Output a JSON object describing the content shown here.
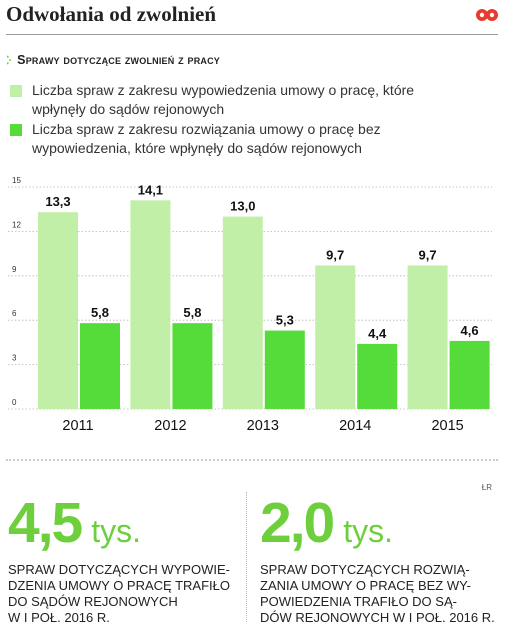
{
  "header": {
    "title": "Odwołania od zwolnień",
    "subtitle": "Sprawy dotyczące zwolnień z pracy",
    "logo_color": "#e83a2e"
  },
  "legend": [
    {
      "label": "Liczba spraw z zakresu wypowiedzenia umowy o pracę, które wpłynęły do sądów rejonowych",
      "color": "#c2efa8"
    },
    {
      "label": "Liczba spraw z zakresu rozwiązania umowy o pracę bez wypowiedzenia, które wpłynęły do sądów rejonowych",
      "color": "#55dc3a"
    }
  ],
  "chart_data": {
    "type": "bar",
    "title": "Sprawy dotyczące zwolnień z pracy",
    "categories": [
      "2011",
      "2012",
      "2013",
      "2014",
      "2015"
    ],
    "series": [
      {
        "name": "Liczba spraw z zakresu wypowiedzenia umowy o pracę, które wpłynęły do sądów rejonowych",
        "values": [
          13.3,
          14.1,
          13.0,
          9.7,
          9.7
        ],
        "labels": [
          "13,3",
          "14,1",
          "13,0",
          "9,7",
          "9,7"
        ],
        "color": "#c2efa8"
      },
      {
        "name": "Liczba spraw z zakresu rozwiązania umowy o pracę bez wypowiedzenia, które wpłynęły do sądów rejonowych",
        "values": [
          5.8,
          5.8,
          5.3,
          4.4,
          4.6
        ],
        "labels": [
          "5,8",
          "5,8",
          "5,3",
          "4,4",
          "4,6"
        ],
        "color": "#55dc3a"
      }
    ],
    "yticks": [
      0,
      3,
      6,
      9,
      12,
      15
    ],
    "ylim": [
      0,
      15
    ],
    "xlabel": "",
    "ylabel": "",
    "grid": true
  },
  "source": "ŁR",
  "stats": [
    {
      "value": "4,5",
      "unit": "tys.",
      "description": "Spraw dotyczących wypowie-\ndzenia umowy o pracę trafiło\ndo sądów rejonowych\nw I poł. 2016 r."
    },
    {
      "value": "2,0",
      "unit": "tys.",
      "description": "Spraw dotyczących rozwią-\nzania umowy o pracę bez wy-\npowiedzenia trafiło do są-\ndów rejonowych w I poł. 2016 r."
    }
  ]
}
